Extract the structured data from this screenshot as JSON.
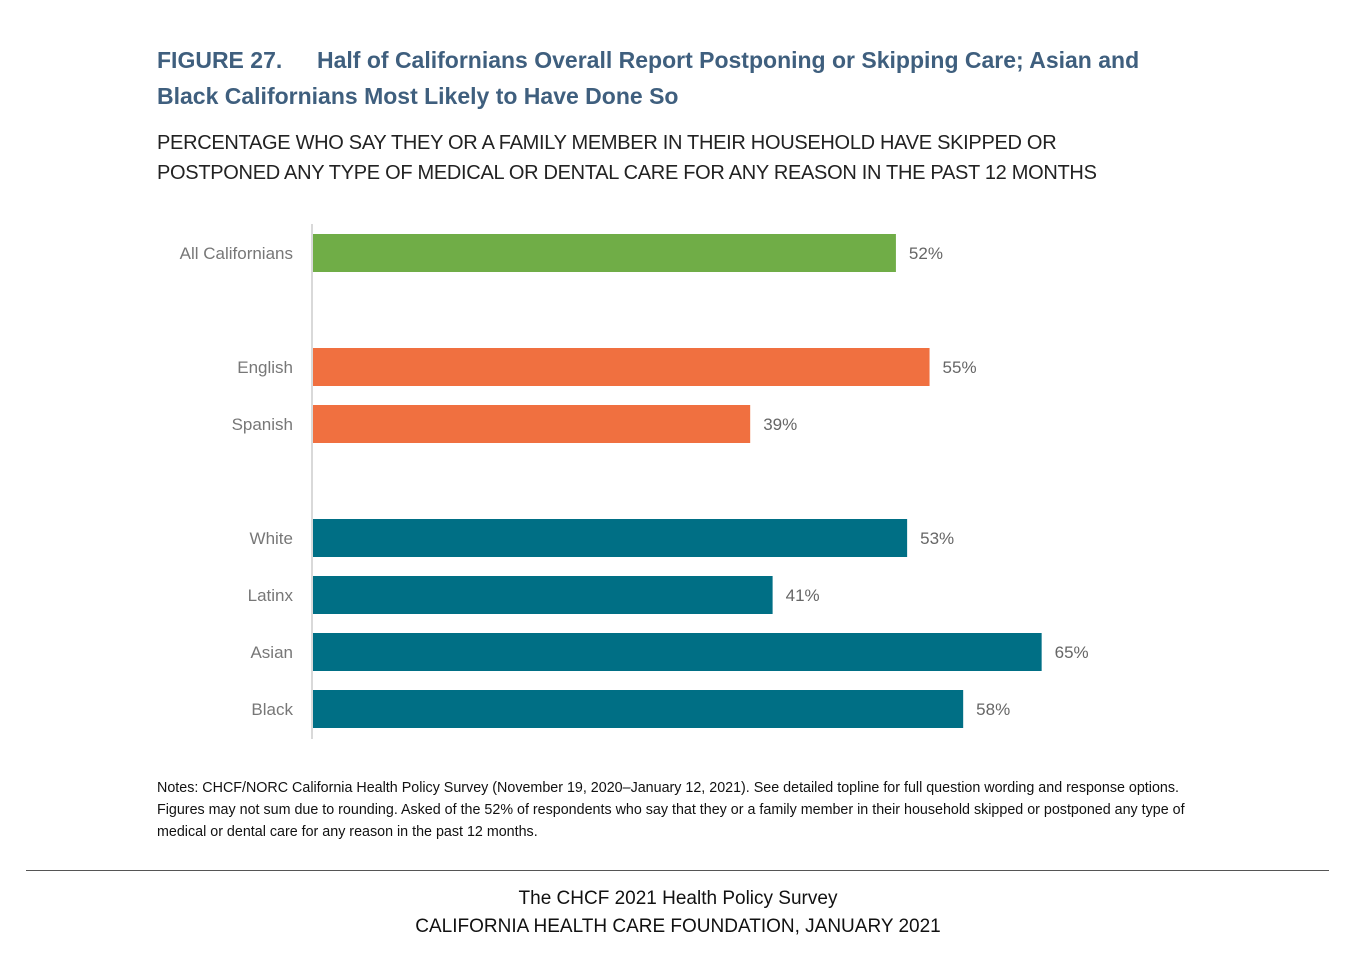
{
  "header": {
    "figure_label": "FIGURE 27.",
    "title": "Half of Californians Overall Report Postponing or Skipping Care; Asian and Black Californians Most Likely to Have Done So",
    "subtitle": "PERCENTAGE WHO SAY THEY OR A FAMILY MEMBER IN THEIR HOUSEHOLD HAVE SKIPPED OR POSTPONED ANY TYPE OF MEDICAL OR DENTAL CARE FOR ANY REASON IN THE PAST 12 MONTHS"
  },
  "chart_data": {
    "type": "bar",
    "orientation": "horizontal",
    "title": "Half of Californians Overall Report Postponing or Skipping Care; Asian and Black Californians Most Likely to Have Done So",
    "xlabel": "",
    "ylabel": "",
    "xlim": [
      0,
      100
    ],
    "grid": false,
    "legend": "none",
    "categories": [
      "All Californians",
      "English",
      "Spanish",
      "White",
      "Latinx",
      "Asian",
      "Black"
    ],
    "values": [
      52,
      55,
      39,
      53,
      41,
      65,
      58
    ],
    "value_labels": [
      "52%",
      "55%",
      "39%",
      "53%",
      "41%",
      "65%",
      "58%"
    ],
    "groups": [
      {
        "name": "overall",
        "categories": [
          "All Californians"
        ],
        "color": "#70ad47"
      },
      {
        "name": "language",
        "categories": [
          "English",
          "Spanish"
        ],
        "color": "#f07040"
      },
      {
        "name": "race/ethnicity",
        "categories": [
          "White",
          "Latinx",
          "Asian",
          "Black"
        ],
        "color": "#006f85"
      }
    ]
  },
  "notes": "Notes: CHCF/NORC California Health Policy Survey (November 19, 2020–January 12, 2021). See detailed topline for full question wording and response options. Figures may not sum due to rounding. Asked of the 52% of respondents who say that they or a family member in their household skipped or postponed any type of medical or dental care for any reason in the past 12 months.",
  "footer": {
    "line1": "The CHCF 2021 Health Policy Survey",
    "line2": "CALIFORNIA HEALTH CARE FOUNDATION, JANUARY 2021"
  }
}
